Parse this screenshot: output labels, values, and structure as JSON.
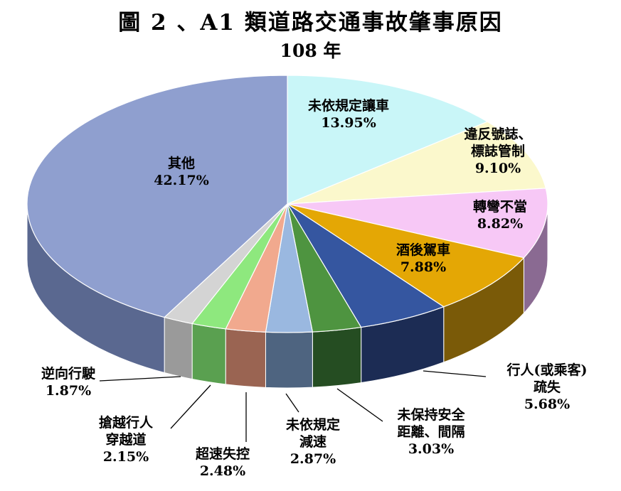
{
  "title": "圖 2 、A1 類道路交通事故肇事原因",
  "subtitle": "108 年",
  "chart_data": {
    "type": "pie",
    "style": "3d",
    "slices": [
      {
        "name": "未依規定讓車",
        "lines": [
          "未依規定讓車"
        ],
        "value": 13.95,
        "pct": "13.95%",
        "color": "#c9f6f8",
        "side": "#9fc4c6"
      },
      {
        "name": "違反號誌、標誌管制",
        "lines": [
          "違反號誌、",
          "標誌管制"
        ],
        "value": 9.1,
        "pct": "9.10%",
        "color": "#fbf8cc",
        "side": "#c6c39c"
      },
      {
        "name": "轉彎不當",
        "lines": [
          "轉彎不當"
        ],
        "value": 8.82,
        "pct": "8.82%",
        "color": "#f7c8f6",
        "side": "#8a6a92"
      },
      {
        "name": "酒後駕車",
        "lines": [
          "酒後駕車"
        ],
        "value": 7.88,
        "pct": "7.88%",
        "color": "#e4a705",
        "side": "#7a5a08"
      },
      {
        "name": "行人(或乘客)疏失",
        "lines": [
          "行人(或乘客)",
          "疏失"
        ],
        "value": 5.68,
        "pct": "5.68%",
        "color": "#3556a0",
        "side": "#1c2c54"
      },
      {
        "name": "未保持安全距離、間隔",
        "lines": [
          "未保持安全",
          "距離、間隔"
        ],
        "value": 3.03,
        "pct": "3.03%",
        "color": "#4e9440",
        "side": "#254d22"
      },
      {
        "name": "未依規定減速",
        "lines": [
          "未依規定",
          "減速"
        ],
        "value": 2.87,
        "pct": "2.87%",
        "color": "#9ab8e0",
        "side": "#4e6480"
      },
      {
        "name": "超速失控",
        "lines": [
          "超速失控"
        ],
        "value": 2.48,
        "pct": "2.48%",
        "color": "#f1a98e",
        "side": "#9a6452"
      },
      {
        "name": "搶越行人穿越道",
        "lines": [
          "搶越行人",
          "穿越道"
        ],
        "value": 2.15,
        "pct": "2.15%",
        "color": "#8ee87e",
        "side": "#5aa050"
      },
      {
        "name": "逆向行駛",
        "lines": [
          "逆向行駛"
        ],
        "value": 1.87,
        "pct": "1.87%",
        "color": "#d4d4d4",
        "side": "#9a9a9a"
      },
      {
        "name": "其他",
        "lines": [
          "其他"
        ],
        "value": 42.17,
        "pct": "42.17%",
        "color": "#8f9fcf",
        "side": "#5a6890"
      }
    ]
  }
}
